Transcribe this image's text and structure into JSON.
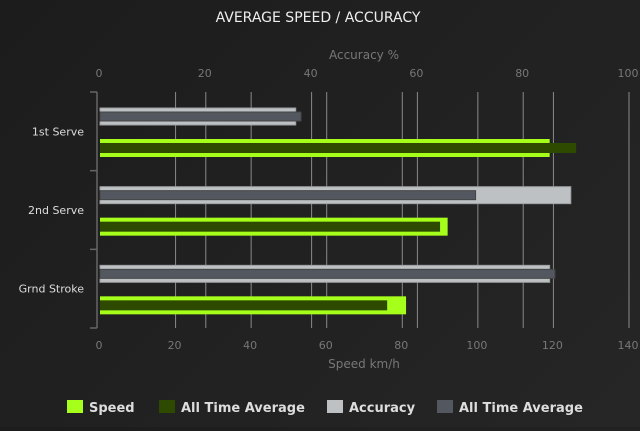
{
  "chart_data": {
    "type": "bar",
    "orientation": "horizontal",
    "title": "AVERAGE SPEED / ACCURACY",
    "categories": [
      "1st Serve",
      "2nd Serve",
      "Grnd Stroke"
    ],
    "xlabel": "Speed km/h",
    "x2label": "Accuracy %",
    "xlim": [
      0,
      140
    ],
    "x2lim": [
      0,
      100
    ],
    "xticks": [
      0,
      20,
      40,
      60,
      80,
      100,
      120,
      140
    ],
    "x2ticks": [
      0,
      20,
      40,
      60,
      80,
      100
    ],
    "grid": true,
    "legend_placement": "bottom",
    "series": [
      {
        "name": "Speed",
        "axis": "speed",
        "values": [
          119,
          92,
          81
        ],
        "color": "#a6ff1a"
      },
      {
        "name": "All Time Average",
        "axis": "speed",
        "values": [
          126,
          90,
          76
        ],
        "color": "#2e4a00"
      },
      {
        "name": "Accuracy",
        "axis": "accuracy",
        "values": [
          37,
          89,
          85
        ],
        "color": "#bdc1c3"
      },
      {
        "name": "All Time Average",
        "axis": "accuracy",
        "values": [
          38,
          71,
          86
        ],
        "color": "#535860"
      }
    ]
  }
}
